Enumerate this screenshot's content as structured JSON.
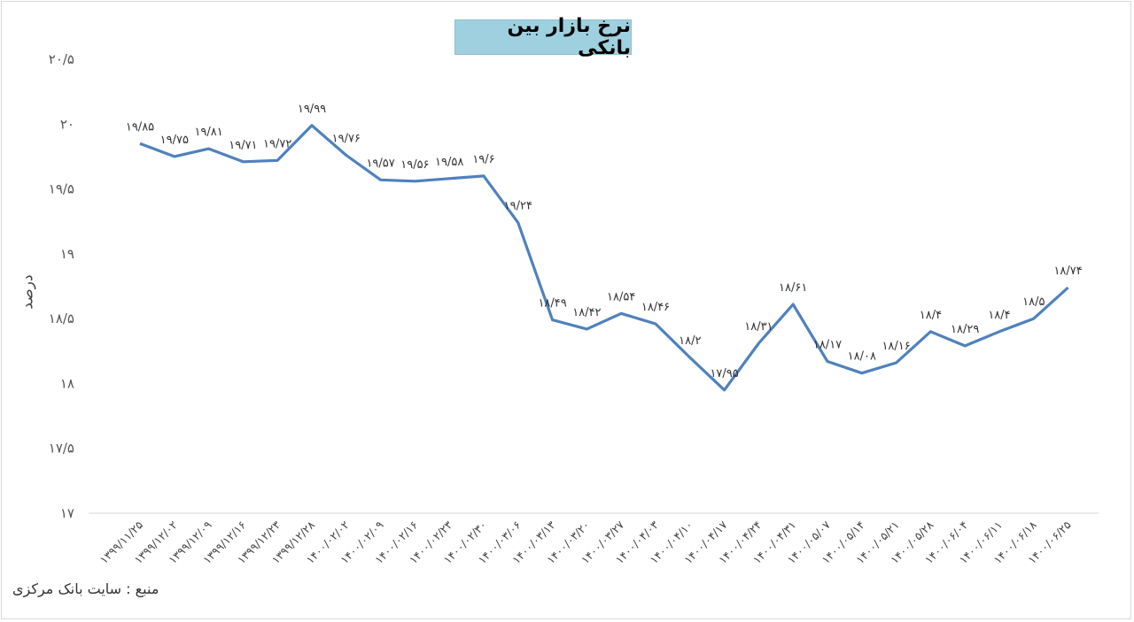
{
  "chart_data": {
    "type": "line",
    "title": "نرخ بازار بین بانکی",
    "ylabel": "درصد",
    "ylim": [
      17,
      20.5
    ],
    "yticks": [
      "۱۷",
      "۱۷/۵",
      "۱۸",
      "۱۸/۵",
      "۱۹",
      "۱۹/۵",
      "۲۰",
      "۲۰/۵"
    ],
    "ytick_values": [
      17,
      17.5,
      18,
      18.5,
      19,
      19.5,
      20,
      20.5
    ],
    "grid": false,
    "color": "#4f81bd",
    "categories": [
      "۱۳۹۹/۱۱/۲۵",
      "۱۳۹۹/۱۲/۰۲",
      "۱۳۹۹/۱۲/۰۹",
      "۱۳۹۹/۱۲/۱۶",
      "۱۳۹۹/۱۲/۲۳",
      "۱۳۹۹/۱۲/۲۸",
      "۱۴۰۰/۰۲/۰۲",
      "۱۴۰۰/۰۲/۰۹",
      "۱۴۰۰/۰۲/۱۶",
      "۱۴۰۰/۰۲/۲۳",
      "۱۴۰۰/۰۲/۳۰",
      "۱۴۰۰/۰۳/۰۶",
      "۱۴۰۰/۰۳/۱۳",
      "۱۴۰۰/۰۳/۲۰",
      "۱۴۰۰/۰۳/۲۷",
      "۱۴۰۰/۰۴/۰۳",
      "۱۴۰۰/۰۴/۱۰",
      "۱۴۰۰/۰۴/۱۷",
      "۱۴۰۰/۰۴/۲۴",
      "۱۴۰۰/۰۴/۳۱",
      "۱۴۰۰/۰۵/۰۷",
      "۱۴۰۰/۰۵/۱۴",
      "۱۴۰۰/۰۵/۲۱",
      "۱۴۰۰/۰۵/۲۸",
      "۱۴۰۰/۰۶/۰۴",
      "۱۴۰۰/۰۶/۱۱",
      "۱۴۰۰/۰۶/۱۸",
      "۱۴۰۰/۰۶/۲۵"
    ],
    "values": [
      19.85,
      19.75,
      19.81,
      19.71,
      19.72,
      19.99,
      19.76,
      19.57,
      19.56,
      19.58,
      19.6,
      19.24,
      18.49,
      18.42,
      18.54,
      18.46,
      18.2,
      17.95,
      18.31,
      18.61,
      18.17,
      18.08,
      18.16,
      18.4,
      18.29,
      18.4,
      18.5,
      18.74
    ],
    "data_labels": [
      "۱۹/۸۵",
      "۱۹/۷۵",
      "۱۹/۸۱",
      "۱۹/۷۱",
      "۱۹/۷۲",
      "۱۹/۹۹",
      "۱۹/۷۶",
      "۱۹/۵۷",
      "۱۹/۵۶",
      "۱۹/۵۸",
      "۱۹/۶",
      "۱۹/۲۴",
      "۱۸/۴۹",
      "۱۸/۴۲",
      "۱۸/۵۴",
      "۱۸/۴۶",
      "۱۸/۲",
      "۱۷/۹۵",
      "۱۸/۳۱",
      "۱۸/۶۱",
      "۱۸/۱۷",
      "۱۸/۰۸",
      "۱۸/۱۶",
      "۱۸/۴",
      "۱۸/۲۹",
      "۱۸/۴",
      "۱۸/۵",
      "۱۸/۷۴"
    ]
  },
  "source": "منبع : سایت بانک مرکزی"
}
